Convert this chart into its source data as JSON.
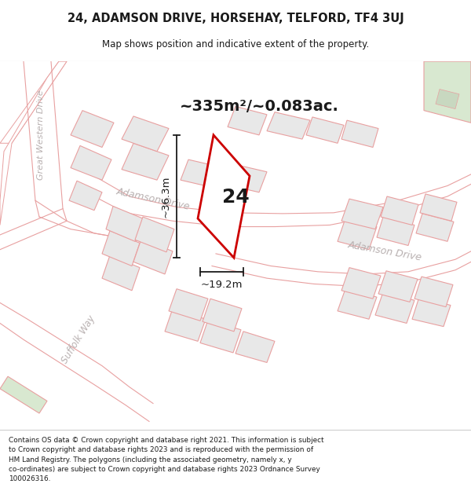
{
  "title": "24, ADAMSON DRIVE, HORSEHAY, TELFORD, TF4 3UJ",
  "subtitle": "Map shows position and indicative extent of the property.",
  "footer": "Contains OS data © Crown copyright and database right 2021. This information is subject to Crown copyright and database rights 2023 and is reproduced with the permission of HM Land Registry. The polygons (including the associated geometry, namely x, y co-ordinates) are subject to Crown copyright and database rights 2023 Ordnance Survey 100026316.",
  "area_text": "~335m²/~0.083ac.",
  "width_label": "~19.2m",
  "height_label": "~36.3m",
  "property_number": "24",
  "map_bg": "#ffffff",
  "plot_fill": "#e8e8e8",
  "plot_edge": "#e8a0a0",
  "road_edge": "#e8a0a0",
  "green_fill": "#d8e8d0",
  "property_fill": "#ffffff",
  "property_edge": "#cc0000",
  "dim_color": "#1a1a1a",
  "label_color": "#b8b0b0",
  "text_color": "#1a1a1a"
}
